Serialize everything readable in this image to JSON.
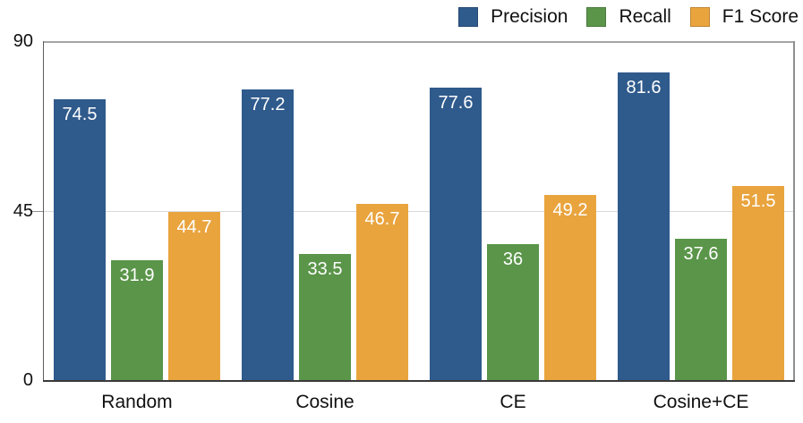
{
  "chart_data": {
    "type": "bar",
    "categories": [
      "Random",
      "Cosine",
      "CE",
      "Cosine+CE"
    ],
    "series": [
      {
        "name": "Precision",
        "color": "#2F5A8C",
        "values": [
          74.5,
          77.2,
          77.6,
          81.6
        ]
      },
      {
        "name": "Recall",
        "color": "#5A9549",
        "values": [
          31.9,
          33.5,
          36,
          37.6
        ]
      },
      {
        "name": "F1 Score",
        "color": "#E9A43E",
        "values": [
          44.7,
          46.7,
          49.2,
          51.5
        ]
      }
    ],
    "title": "",
    "xlabel": "",
    "ylabel": "",
    "ylim": [
      0,
      90
    ],
    "yticks": [
      0,
      45,
      90
    ],
    "gridlines": [
      45
    ],
    "legend_position": "top-right",
    "bar_label_color": "#FFFFFF",
    "bar_labels_inside": true
  },
  "colors": {
    "background": "#FFFFFF",
    "grid": "#D9D9D9",
    "frame_top": "#A5A5A5",
    "frame_right": "#8F8F8F",
    "frame_left": "#5E5E5E",
    "axis_bottom": "#3A3A3A",
    "text": "#111111"
  }
}
